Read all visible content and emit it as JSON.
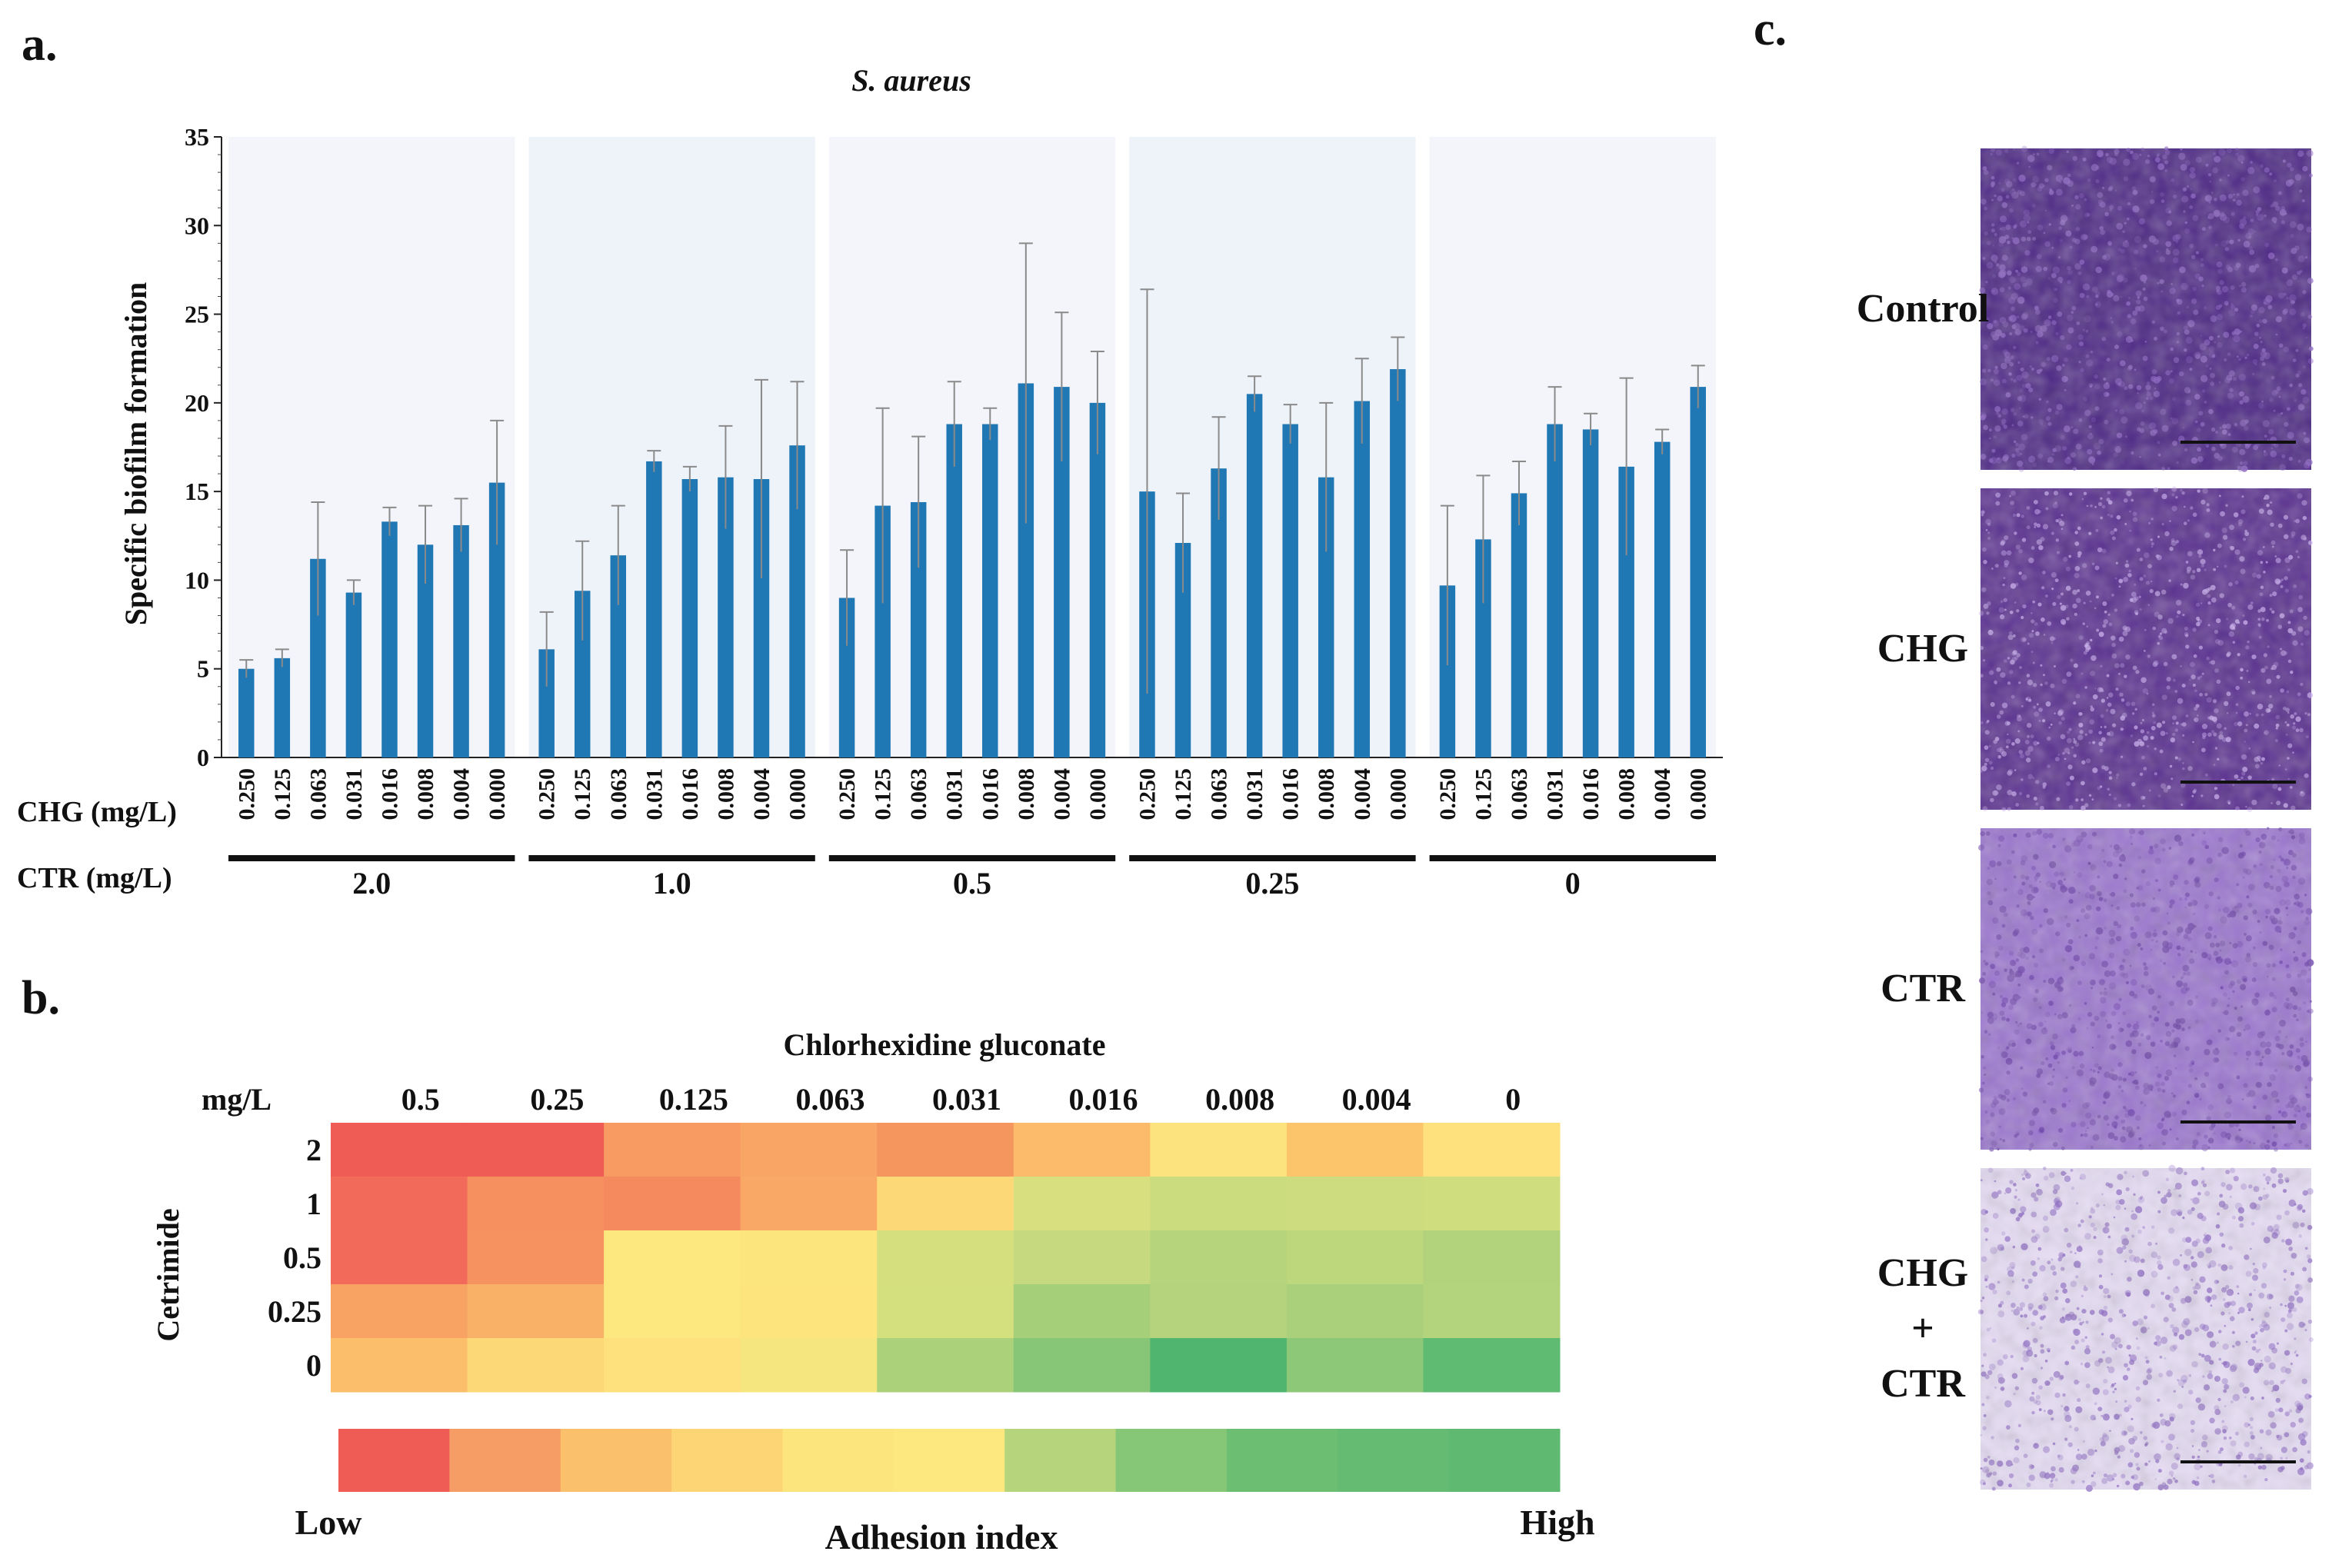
{
  "panels": {
    "a": "a.",
    "b": "b.",
    "c": "c."
  },
  "chart_data": [
    {
      "type": "bar",
      "title": "S. aureus",
      "ylabel": "Specific biofilm formation",
      "xlabel_rows": [
        "CHG (mg/L)",
        "CTR (mg/L)"
      ],
      "ylim": [
        0,
        35
      ],
      "yticks": [
        0,
        5,
        10,
        15,
        20,
        25,
        30,
        35
      ],
      "chg_levels": [
        "0.250",
        "0.125",
        "0.063",
        "0.031",
        "0.016",
        "0.008",
        "0.004",
        "0.000"
      ],
      "groups": [
        {
          "ctr": "2.0",
          "values": [
            5.0,
            5.6,
            11.2,
            9.3,
            13.3,
            12.0,
            13.1,
            15.5
          ],
          "errors": [
            0.5,
            0.5,
            3.2,
            0.7,
            0.8,
            2.2,
            1.5,
            3.5
          ]
        },
        {
          "ctr": "1.0",
          "values": [
            6.1,
            9.4,
            11.4,
            16.7,
            15.7,
            15.8,
            15.7,
            17.6
          ],
          "errors": [
            2.1,
            2.8,
            2.8,
            0.6,
            0.7,
            2.9,
            5.6,
            3.6
          ]
        },
        {
          "ctr": "0.5",
          "values": [
            9.0,
            14.2,
            14.4,
            18.8,
            18.8,
            21.1,
            20.9,
            20.0
          ],
          "errors": [
            2.7,
            5.5,
            3.7,
            2.4,
            0.9,
            7.9,
            4.2,
            2.9
          ]
        },
        {
          "ctr": "0.25",
          "values": [
            15.0,
            12.1,
            16.3,
            20.5,
            18.8,
            15.8,
            20.1,
            21.9
          ],
          "errors": [
            11.4,
            2.8,
            2.9,
            1.0,
            1.1,
            4.2,
            2.4,
            1.8
          ]
        },
        {
          "ctr": "0",
          "values": [
            9.7,
            12.3,
            14.9,
            18.8,
            18.5,
            16.4,
            17.8,
            20.9
          ],
          "errors": [
            4.5,
            3.6,
            1.8,
            2.1,
            0.9,
            5.0,
            0.7,
            1.2
          ]
        }
      ],
      "bar_color": "#1f77b4"
    },
    {
      "type": "heatmap",
      "title": "Chlorhexidine gluconate",
      "unit_label": "mg/L",
      "row_label": "Cetrimide",
      "columns": [
        "0.5",
        "0.25",
        "0.125",
        "0.063",
        "0.031",
        "0.016",
        "0.008",
        "0.004",
        "0"
      ],
      "rows": [
        "2",
        "1",
        "0.5",
        "0.25",
        "0"
      ],
      "colors": [
        [
          "#ef5b55",
          "#ef5b55",
          "#f79b63",
          "#f8a565",
          "#f6965f",
          "#fbbb6a",
          "#fde37d",
          "#fcc56c",
          "#fee07c"
        ],
        [
          "#f26a59",
          "#f6905f",
          "#f48a5e",
          "#f9a965",
          "#fdd877",
          "#d8df7e",
          "#cbdc7e",
          "#ccdc7e",
          "#d0dd7f"
        ],
        [
          "#f26a59",
          "#f6925f",
          "#fde87f",
          "#fde57d",
          "#d5df7e",
          "#c7d97e",
          "#b6d47c",
          "#bdd77d",
          "#b2d27b"
        ],
        [
          "#f8a264",
          "#f9b167",
          "#fde77f",
          "#fde47d",
          "#d4df7e",
          "#a6cf7a",
          "#b4d37c",
          "#aad07b",
          "#b3d37c"
        ],
        [
          "#fbbf6b",
          "#fdd877",
          "#fee07c",
          "#f5e680",
          "#acd17b",
          "#88c677",
          "#4fb56f",
          "#8dc778",
          "#5fba72"
        ]
      ],
      "legend": {
        "low_label": "Low",
        "high_label": "High",
        "title": "Adhesion index",
        "colors": [
          "#ef5b55",
          "#f59d64",
          "#fbc06c",
          "#fdd575",
          "#fde57e",
          "#fde87f",
          "#b6d47c",
          "#86c677",
          "#6cbe73",
          "#66bb72",
          "#5fb971"
        ]
      }
    }
  ],
  "microscopy": {
    "images": [
      {
        "label_lines": [
          "Control"
        ],
        "base_color": "#4e2a86",
        "speckle_color": "#8a62c2"
      },
      {
        "label_lines": [
          "CHG"
        ],
        "base_color": "#5b3190",
        "speckle_color": "#c6a8ee"
      },
      {
        "label_lines": [
          "CTR"
        ],
        "base_color": "#9b77cf",
        "speckle_color": "#6c43a8"
      },
      {
        "label_lines": [
          "CHG",
          "+",
          "CTR"
        ],
        "base_color": "#e6dcf4",
        "speckle_color": "#8a66c2"
      }
    ]
  }
}
